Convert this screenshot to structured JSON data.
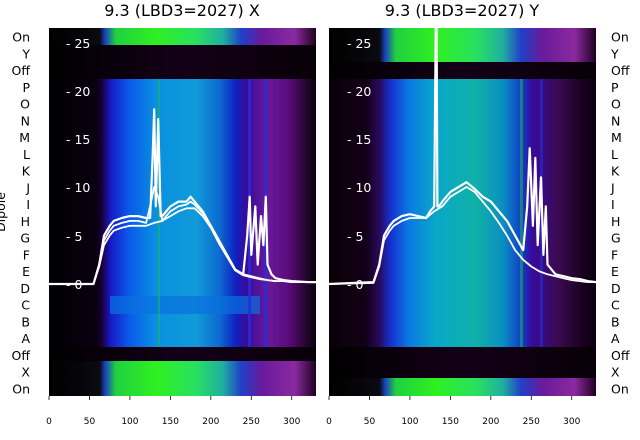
{
  "chart_data": [
    {
      "type": "heatmap",
      "title": "9.3 (LBD3=2027) X",
      "ylabel": "Dipole",
      "rows_top_to_bottom": [
        "On",
        "Y",
        "Off",
        "P",
        "O",
        "N",
        "M",
        "L",
        "K",
        "J",
        "I",
        "H",
        "G",
        "F",
        "E",
        "D",
        "C",
        "B",
        "A",
        "Off",
        "X",
        "On"
      ],
      "xlim": [
        0,
        330
      ],
      "xticks": [
        "0",
        "50",
        "100",
        "150",
        "200",
        "250",
        "300"
      ],
      "overlay_ylim": [
        -12,
        27
      ],
      "overlay_yticks": [
        "- 25",
        "- 20",
        "- 15",
        "- 10",
        "- 5",
        "- 0"
      ],
      "series": [
        {
          "name": "",
          "x": [
            0,
            55,
            62,
            68,
            75,
            80,
            90,
            100,
            110,
            120,
            125,
            128,
            130,
            132,
            135,
            138,
            140,
            145,
            150,
            160,
            170,
            175,
            180,
            190,
            200,
            210,
            220,
            230,
            240,
            245,
            248,
            250,
            255,
            258,
            262,
            265,
            268,
            270,
            275,
            280,
            290,
            300,
            320,
            330
          ],
          "y": [
            0,
            0,
            2,
            5,
            6,
            6.5,
            6.8,
            7,
            7,
            6.8,
            6.8,
            13,
            18,
            8,
            17,
            7,
            7,
            7.5,
            8,
            8.5,
            8.5,
            9,
            8.5,
            7.5,
            6,
            4.5,
            3,
            1.5,
            1,
            5,
            9,
            3,
            8,
            2,
            7,
            4,
            9,
            2,
            1,
            0.6,
            0.4,
            0.3,
            0.2,
            0.2
          ]
        },
        {
          "name": "",
          "x": [
            0,
            55,
            62,
            68,
            75,
            80,
            90,
            100,
            110,
            120,
            125,
            130,
            135,
            140,
            145,
            150,
            160,
            170,
            175,
            180,
            190,
            200,
            210,
            220,
            230,
            240,
            250,
            260,
            270,
            280,
            290,
            300,
            320,
            330
          ],
          "y": [
            0,
            0,
            2,
            4.5,
            5.5,
            6,
            6.3,
            6.5,
            6.5,
            6.3,
            8,
            10,
            9,
            6.5,
            7,
            7.5,
            8,
            8.2,
            8.5,
            8.2,
            7.3,
            6,
            4.3,
            3,
            1.5,
            1,
            0.8,
            0.6,
            0.4,
            0.3,
            0.3,
            0.2,
            0.2,
            0.2
          ]
        },
        {
          "name": "",
          "x": [
            0,
            55,
            62,
            68,
            75,
            80,
            90,
            100,
            110,
            120,
            130,
            140,
            150,
            160,
            170,
            180,
            190,
            200,
            210,
            220,
            230,
            240,
            250,
            260,
            270,
            280,
            290,
            300,
            320,
            330
          ],
          "y": [
            0,
            0,
            1.8,
            4,
            5,
            5.5,
            5.8,
            6,
            6,
            6,
            6.3,
            6.5,
            7,
            7.5,
            7.8,
            7.8,
            7,
            5.8,
            4.2,
            2.8,
            1.4,
            0.9,
            0.7,
            0.5,
            0.4,
            0.3,
            0.3,
            0.2,
            0.2,
            0.2
          ]
        }
      ]
    },
    {
      "type": "heatmap",
      "title": "9.3 (LBD3=2027) Y",
      "ylabel": "",
      "rows_top_to_bottom": [
        "On",
        "Y",
        "Off",
        "P",
        "O",
        "N",
        "M",
        "L",
        "K",
        "J",
        "I",
        "H",
        "G",
        "F",
        "E",
        "D",
        "C",
        "B",
        "A",
        "Off",
        "X",
        "On"
      ],
      "xlim": [
        0,
        330
      ],
      "xticks": [
        "0",
        "50",
        "100",
        "150",
        "200",
        "250",
        "300"
      ],
      "overlay_ylim": [
        -12,
        27
      ],
      "overlay_yticks": [
        "- 25",
        "- 20",
        "- 15",
        "- 10",
        "- 5",
        "- 0"
      ],
      "series": [
        {
          "name": "",
          "x": [
            0,
            55,
            62,
            68,
            75,
            80,
            90,
            100,
            110,
            120,
            125,
            130,
            132,
            133,
            134,
            136,
            140,
            150,
            160,
            170,
            180,
            190,
            200,
            210,
            220,
            230,
            240,
            245,
            248,
            252,
            255,
            258,
            262,
            265,
            268,
            270,
            275,
            280,
            290,
            300,
            310,
            320,
            330
          ],
          "y": [
            0,
            0.2,
            2,
            5,
            6,
            6.5,
            7,
            7.2,
            7,
            6.8,
            7.5,
            8,
            27,
            27,
            8,
            8,
            8.5,
            9.5,
            10,
            10.5,
            9.8,
            9,
            8.5,
            7.5,
            6.5,
            5,
            3.5,
            8,
            14,
            6,
            13,
            4,
            11,
            3,
            8,
            2,
            1.5,
            1,
            0.8,
            0.6,
            0.5,
            0.3,
            0.2
          ]
        },
        {
          "name": "",
          "x": [
            0,
            55,
            62,
            68,
            75,
            80,
            90,
            100,
            110,
            120,
            130,
            140,
            150,
            160,
            170,
            180,
            190,
            200,
            210,
            220,
            230,
            240,
            250,
            260,
            270,
            280,
            290,
            300,
            320,
            330
          ],
          "y": [
            0,
            0.1,
            1.8,
            4.5,
            5.5,
            6,
            6.5,
            6.8,
            6.8,
            6.8,
            7.5,
            8,
            9,
            9.5,
            10,
            9.5,
            8.5,
            7.5,
            6.3,
            5,
            3.5,
            2.5,
            1.8,
            1.3,
            1,
            0.8,
            0.6,
            0.4,
            0.2,
            0.2
          ]
        }
      ]
    }
  ]
}
